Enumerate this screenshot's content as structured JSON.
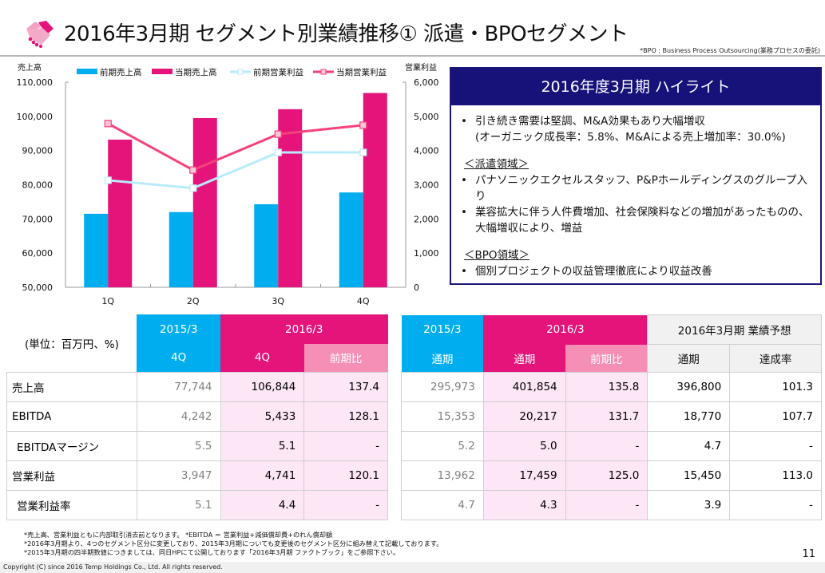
{
  "header": {
    "title": "2016年3月期 セグメント別業績推移① 派遣・BPOセグメント",
    "logo_icon": "handshake-icon",
    "bpo_note": "*BPO : Business Process Outsourcing(業務プロセスの委託)"
  },
  "colors": {
    "prev_sales": "#00aeef",
    "curr_sales": "#e4147b",
    "prev_profit_line": "#b8ecfb",
    "curr_profit_line": "#f5427a",
    "highlight_header": "#16127a",
    "curr_cell_bg": "#fde6f6",
    "ratio_header": "#f68fb6"
  },
  "chart_data": {
    "type": "bar",
    "categories": [
      "1Q",
      "2Q",
      "3Q",
      "4Q"
    ],
    "left_axis": {
      "label": "売上高",
      "ylim": [
        50000,
        110000
      ],
      "ticks": [
        "50,000",
        "60,000",
        "70,000",
        "80,000",
        "90,000",
        "100,000",
        "110,000"
      ],
      "tick_values": [
        50000,
        60000,
        70000,
        80000,
        90000,
        100000,
        110000
      ]
    },
    "right_axis": {
      "label": "営業利益",
      "ylim": [
        0,
        6000
      ],
      "ticks": [
        "0",
        "1,000",
        "2,000",
        "3,000",
        "4,000",
        "5,000",
        "6,000"
      ],
      "tick_values": [
        0,
        1000,
        2000,
        3000,
        4000,
        5000,
        6000
      ]
    },
    "series": [
      {
        "name": "前期売上高",
        "type": "bar",
        "axis": "left",
        "values": [
          71500,
          72000,
          74300,
          77744
        ]
      },
      {
        "name": "当期売上高",
        "type": "bar",
        "axis": "left",
        "values": [
          93200,
          99500,
          102100,
          106844
        ]
      },
      {
        "name": "前期営業利益",
        "type": "line",
        "axis": "right",
        "values": [
          3130,
          2900,
          3945,
          3947
        ]
      },
      {
        "name": "当期営業利益",
        "type": "line",
        "axis": "right",
        "values": [
          4790,
          3430,
          4480,
          4741
        ]
      }
    ],
    "legend": "top",
    "grid": false
  },
  "highlight": {
    "title": "2016年度3月期 ハイライト",
    "bullet_char": "•",
    "intro": [
      "引き続き需要は堅調、M&A効果もあり大幅増収",
      "(オーガニック成長率：5.8%、M&Aによる売上増加率：30.0%)"
    ],
    "sections": [
      {
        "heading": "＜派遣領域＞",
        "bullets": [
          "パナソニックエクセルスタッフ、P&Pホールディングスのグループ入り",
          "業容拡大に伴う人件費増加、社会保険料などの増加があったものの、大幅増収により、増益"
        ]
      },
      {
        "heading": "＜BPO領域＞",
        "bullets": [
          "個別プロジェクトの収益管理徹底により収益改善"
        ]
      }
    ]
  },
  "table_quarter": {
    "unit": "(単位：百万円、%)",
    "group_prev": "2015/3",
    "group_curr": "2016/3",
    "col_prev": "4Q",
    "col_curr": "4Q",
    "col_ratio": "前期比",
    "rows": [
      {
        "label": "売上高",
        "prev": "77,744",
        "curr": "106,844",
        "ratio": "137.4"
      },
      {
        "label": "EBITDA",
        "prev": "4,242",
        "curr": "5,433",
        "ratio": "128.1"
      },
      {
        "label": "EBITDAマージン",
        "prev": "5.5",
        "curr": "5.1",
        "ratio": "-"
      },
      {
        "label": "営業利益",
        "prev": "3,947",
        "curr": "4,741",
        "ratio": "120.1"
      },
      {
        "label": "営業利益率",
        "prev": "5.1",
        "curr": "4.4",
        "ratio": "-"
      }
    ]
  },
  "table_full": {
    "group_prev": "2015/3",
    "group_curr": "2016/3",
    "group_forecast": "2016年3月期 業績予想",
    "col_prev": "通期",
    "col_curr": "通期",
    "col_ratio": "前期比",
    "col_forecast": "通期",
    "col_achieve": "達成率",
    "rows": [
      {
        "prev": "295,973",
        "curr": "401,854",
        "ratio": "135.8",
        "forecast": "396,800",
        "achieve": "101.3"
      },
      {
        "prev": "15,353",
        "curr": "20,217",
        "ratio": "131.7",
        "forecast": "18,770",
        "achieve": "107.7"
      },
      {
        "prev": "5.2",
        "curr": "5.0",
        "ratio": "-",
        "forecast": "4.7",
        "achieve": "-"
      },
      {
        "prev": "13,962",
        "curr": "17,459",
        "ratio": "125.0",
        "forecast": "15,450",
        "achieve": "113.0"
      },
      {
        "prev": "4.7",
        "curr": "4.3",
        "ratio": "-",
        "forecast": "3.9",
        "achieve": "-"
      }
    ]
  },
  "footnotes": [
    "*売上高、営業利益ともに内部取引消去前となります。 *EBITDA ＝ 営業利益+減価償却費+のれん償却額",
    "*2016年3月期より、4つのセグメント区分に変更しており、2015年3月期についても変更後のセグメント区分に組み替えて記載しております。",
    "*2015年3月期の四半期数値につきましては、同日HPにて公開しております「2016年3月期 ファクトブック」をご参照下さい。"
  ],
  "page_number": "11",
  "copyright": "Copyright (C) since 2016 Temp Holdings Co., Ltd. All rights reserved."
}
